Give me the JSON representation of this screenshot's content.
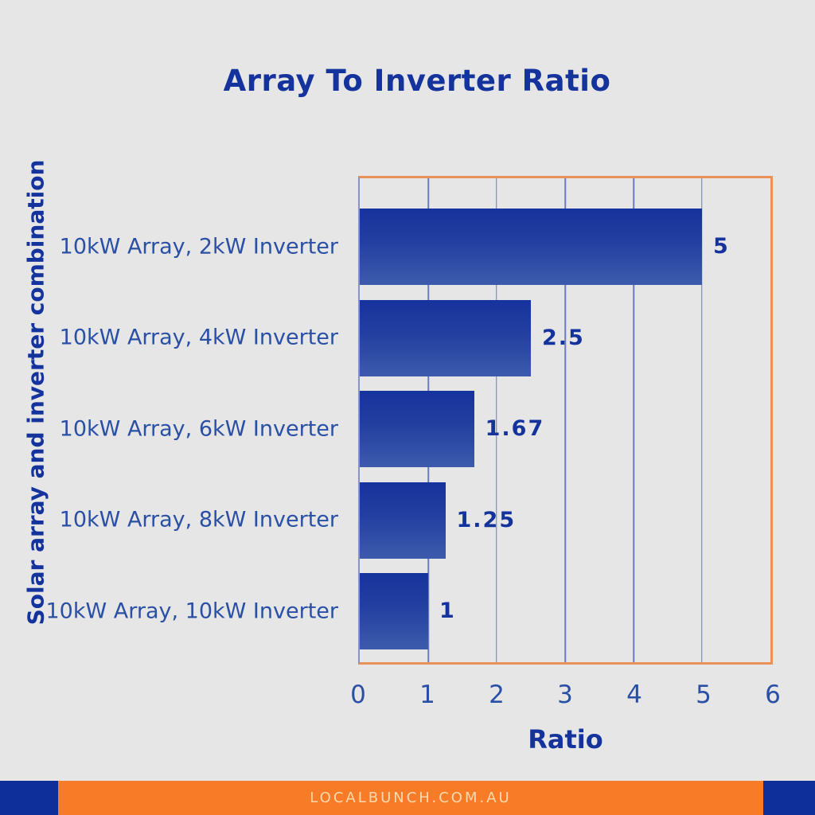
{
  "page": {
    "background_color": "#e6e6e7"
  },
  "chart_data": {
    "type": "bar",
    "orientation": "horizontal",
    "title": "Array To Inverter Ratio",
    "xlabel": "Ratio",
    "ylabel": "Solar array and inverter combination",
    "categories": [
      "10kW Array, 2kW Inverter",
      "10kW Array, 4kW Inverter",
      "10kW Array, 6kW Inverter",
      "10kW Array, 8kW Inverter",
      "10kW Array, 10kW Inverter"
    ],
    "values": [
      5,
      2.5,
      1.67,
      1.25,
      1
    ],
    "value_labels": [
      "5",
      "2.5",
      "1.67",
      "1.25",
      "1"
    ],
    "xlim": [
      0,
      6
    ],
    "x_ticks": [
      "0",
      "1",
      "2",
      "3",
      "4",
      "5",
      "6"
    ],
    "grid": "vertical gridlines on",
    "legend": "none",
    "colors": {
      "bar_gradient_top": "#16339e",
      "bar_gradient_bottom": "#3d5bad",
      "plot_border": "#e9915a",
      "gridline": "#6b7cba",
      "axis_line_left": "#8495c5",
      "title_text": "#14339c",
      "category_text": "#2a50a5",
      "tick_text": "#2a50a5",
      "value_text": "#14339c"
    }
  },
  "footer": {
    "text": "LOCALBUNCH.COM.AU",
    "background": "#f87c28",
    "square_color": "#0e2f97",
    "text_color": "#fbd9ad"
  }
}
